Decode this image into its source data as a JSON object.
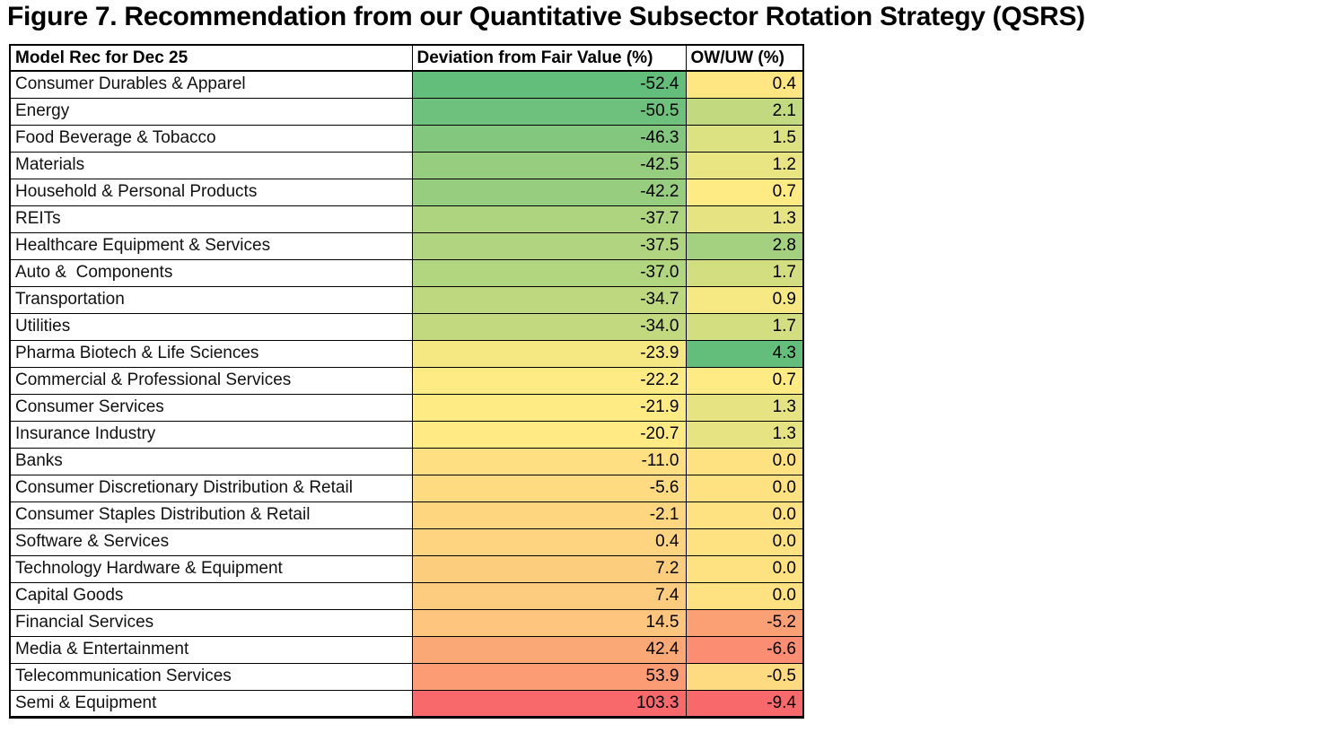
{
  "figure": {
    "title": "Figure 7. Recommendation from our Quantitative Subsector Rotation Strategy (QSRS)"
  },
  "chart_data": {
    "type": "table",
    "subtype": "heatmap-table",
    "title": "Figure 7. Recommendation from our Quantitative Subsector Rotation Strategy (QSRS)",
    "columns": [
      "Model Rec for Dec 25",
      "Deviation from Fair Value (%)",
      "OW/UW (%)"
    ],
    "rows": [
      {
        "label": "Consumer Durables & Apparel",
        "deviation_pct": -52.4,
        "ow_uw_pct": 0.4,
        "deviation_color": "#63BE7B",
        "ow_uw_color": "#FEE783"
      },
      {
        "label": "Energy",
        "deviation_pct": -50.5,
        "ow_uw_pct": 2.1,
        "deviation_color": "#6DC17C",
        "ow_uw_color": "#C2D980"
      },
      {
        "label": "Food Beverage & Tobacco",
        "deviation_pct": -46.3,
        "ow_uw_pct": 1.5,
        "deviation_color": "#82C77D",
        "ow_uw_color": "#DCE182"
      },
      {
        "label": "Materials",
        "deviation_pct": -42.5,
        "ow_uw_pct": 1.2,
        "deviation_color": "#96CD7E",
        "ow_uw_color": "#E9E582"
      },
      {
        "label": "Household & Personal Products",
        "deviation_pct": -42.2,
        "ow_uw_pct": 0.7,
        "deviation_color": "#97CD7E",
        "ow_uw_color": "#FFEB84"
      },
      {
        "label": "REITs",
        "deviation_pct": -37.7,
        "ow_uw_pct": 1.3,
        "deviation_color": "#AFD47F",
        "ow_uw_color": "#E5E382"
      },
      {
        "label": "Healthcare Equipment & Services",
        "deviation_pct": -37.5,
        "ow_uw_pct": 2.8,
        "deviation_color": "#B0D47F",
        "ow_uw_color": "#A4D17F"
      },
      {
        "label": "Auto &  Components",
        "deviation_pct": -37.0,
        "ow_uw_pct": 1.7,
        "deviation_color": "#B2D580",
        "ow_uw_color": "#D3DE81"
      },
      {
        "label": "Transportation",
        "deviation_pct": -34.7,
        "ow_uw_pct": 0.9,
        "deviation_color": "#BED880",
        "ow_uw_color": "#F6E883"
      },
      {
        "label": "Utilities",
        "deviation_pct": -34.0,
        "ow_uw_pct": 1.7,
        "deviation_color": "#C2D980",
        "ow_uw_color": "#D3DE81"
      },
      {
        "label": "Pharma Biotech & Life Sciences",
        "deviation_pct": -23.9,
        "ow_uw_pct": 4.3,
        "deviation_color": "#F5E883",
        "ow_uw_color": "#63BE7B"
      },
      {
        "label": "Commercial & Professional Services",
        "deviation_pct": -22.2,
        "ow_uw_pct": 0.7,
        "deviation_color": "#FEEB84",
        "ow_uw_color": "#FFEB84"
      },
      {
        "label": "Consumer Services",
        "deviation_pct": -21.9,
        "ow_uw_pct": 1.3,
        "deviation_color": "#FFEB84",
        "ow_uw_color": "#E5E382"
      },
      {
        "label": "Insurance Industry",
        "deviation_pct": -20.7,
        "ow_uw_pct": 1.3,
        "deviation_color": "#FFEA84",
        "ow_uw_color": "#E5E382"
      },
      {
        "label": "Banks",
        "deviation_pct": -11.0,
        "ow_uw_pct": 0.0,
        "deviation_color": "#FEDF82",
        "ow_uw_color": "#FEE282"
      },
      {
        "label": "Consumer Discretionary Distribution & Retail",
        "deviation_pct": -5.6,
        "ow_uw_pct": 0.0,
        "deviation_color": "#FEDA81",
        "ow_uw_color": "#FEE282"
      },
      {
        "label": "Consumer Staples Distribution & Retail",
        "deviation_pct": -2.1,
        "ow_uw_pct": 0.0,
        "deviation_color": "#FED680",
        "ow_uw_color": "#FEE282"
      },
      {
        "label": "Software & Services",
        "deviation_pct": 0.4,
        "ow_uw_pct": 0.0,
        "deviation_color": "#FED480",
        "ow_uw_color": "#FEE282"
      },
      {
        "label": "Technology Hardware & Equipment",
        "deviation_pct": 7.2,
        "ow_uw_pct": 0.0,
        "deviation_color": "#FDCD7E",
        "ow_uw_color": "#FEE282"
      },
      {
        "label": "Capital Goods",
        "deviation_pct": 7.4,
        "ow_uw_pct": 0.0,
        "deviation_color": "#FDCC7E",
        "ow_uw_color": "#FEE282"
      },
      {
        "label": "Financial Services",
        "deviation_pct": 14.5,
        "ow_uw_pct": -5.2,
        "deviation_color": "#FDC57D",
        "ow_uw_color": "#FB9F75"
      },
      {
        "label": "Media & Entertainment",
        "deviation_pct": 42.4,
        "ow_uw_pct": -6.6,
        "deviation_color": "#FBA877",
        "ow_uw_color": "#FA8D72"
      },
      {
        "label": "Telecommunication Services",
        "deviation_pct": 53.9,
        "ow_uw_pct": -0.5,
        "deviation_color": "#FB9C75",
        "ow_uw_color": "#FEDB81"
      },
      {
        "label": "Semi & Equipment",
        "deviation_pct": 103.3,
        "ow_uw_pct": -9.4,
        "deviation_color": "#F8696B",
        "ow_uw_color": "#F8696B"
      }
    ],
    "color_scale": {
      "type": "3-color",
      "min_color": "#63BE7B",
      "mid_color": "#FFEB84",
      "max_color": "#F8696B",
      "note": "green = low/negative deviation or high OW, red = high deviation or deep UW"
    },
    "layout_hints": {
      "grid": "all black cell borders",
      "header_row": "bold, white background",
      "value_format": "one decimal place",
      "deviation_range": [
        -52.4,
        103.3
      ],
      "ow_uw_range": [
        -9.4,
        4.3
      ]
    }
  }
}
